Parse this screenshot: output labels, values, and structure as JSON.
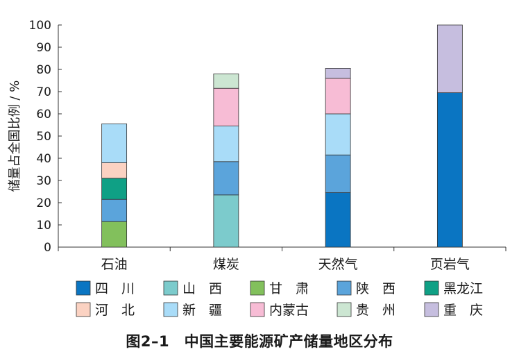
{
  "chart_data": {
    "type": "bar",
    "stacked": true,
    "categories": [
      "石油",
      "煤炭",
      "天然气",
      "页岩气"
    ],
    "ylabel": "储量占全国比例 / %",
    "ylim": [
      0,
      100
    ],
    "yticks": [
      0,
      10,
      20,
      30,
      40,
      50,
      60,
      70,
      80,
      90,
      100
    ],
    "series": [
      {
        "name": "四　川",
        "color": "#0a75c2",
        "values": [
          0,
          0,
          24.5,
          69.5
        ]
      },
      {
        "name": "山　西",
        "color": "#7ccbcc",
        "values": [
          0,
          23.5,
          0,
          0
        ]
      },
      {
        "name": "甘　肃",
        "color": "#82c05c",
        "values": [
          11.5,
          0,
          0,
          0
        ]
      },
      {
        "name": "陕　西",
        "color": "#5ba4db",
        "values": [
          10,
          15,
          17,
          0
        ]
      },
      {
        "name": "黑龙江",
        "color": "#0fa085",
        "values": [
          9.5,
          0,
          0,
          0
        ]
      },
      {
        "name": "河　北",
        "color": "#fbd2c2",
        "values": [
          7,
          0,
          0,
          0
        ]
      },
      {
        "name": "新　疆",
        "color": "#a9dcf8",
        "values": [
          17.5,
          16,
          18.5,
          0
        ]
      },
      {
        "name": "内蒙古",
        "color": "#f7bcd5",
        "values": [
          0,
          17,
          16,
          0
        ]
      },
      {
        "name": "贵　州",
        "color": "#cce6d2",
        "values": [
          0,
          6.5,
          0,
          0
        ]
      },
      {
        "name": "重　庆",
        "color": "#c6bedf",
        "values": [
          0,
          0,
          4.5,
          30.5
        ]
      }
    ],
    "legend_position": "bottom"
  },
  "caption": "图2–1　中国主要能源矿产储量地区分布"
}
